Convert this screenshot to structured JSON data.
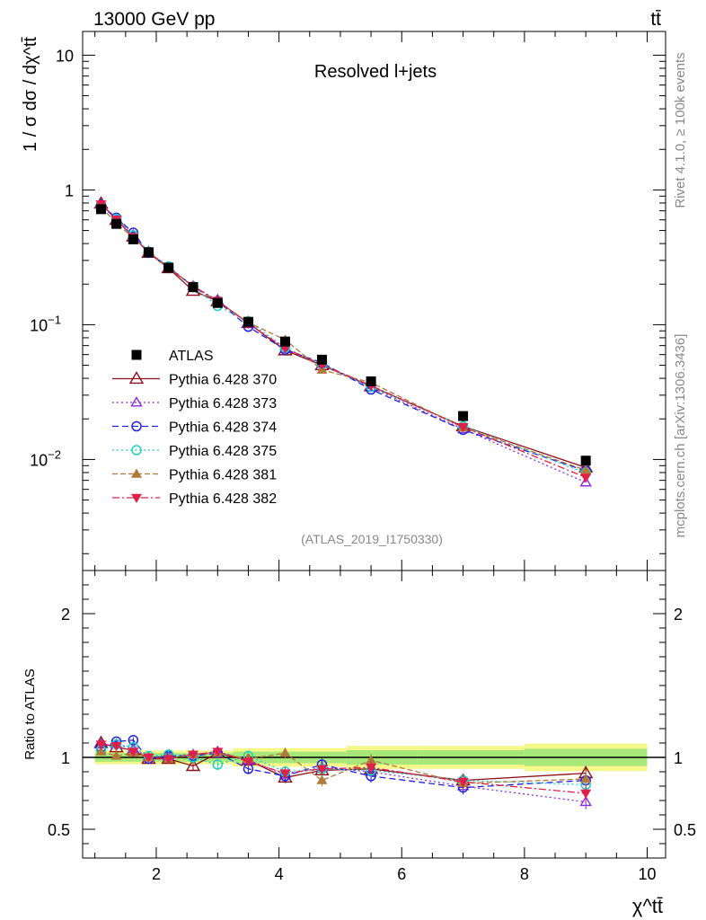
{
  "header": {
    "left_label": "13000 GeV pp",
    "right_label": "tt̄",
    "legend_title": "Resolved l+jets",
    "watermark": "(ATLAS_2019_I1750330)"
  },
  "side": {
    "rivet": "Rivet 4.1.0, ≥ 100k events",
    "mcplots": "mcplots.cern.ch [arXiv:1306.3436]"
  },
  "chart_data": {
    "type": "line",
    "title": "Resolved l+jets",
    "xlabel": "χ^tt̄",
    "ylabel": "1 / σ dσ / dχ^tt̄",
    "ratio_ylabel": "Ratio to ATLAS",
    "xlim": [
      0.8,
      10.3
    ],
    "ylim": [
      0.0015,
      15
    ],
    "ratio_ylim": [
      0.3,
      2.3
    ],
    "yscale": "log",
    "x": [
      1.1,
      1.35,
      1.625,
      1.875,
      2.2,
      2.6,
      3.0,
      3.5,
      4.1,
      4.7,
      5.5,
      7.0,
      9.0
    ],
    "x_ticks": [
      "2",
      "4",
      "6",
      "8",
      "10"
    ],
    "y_ticks": [
      "10^-2",
      "10^-1",
      "1",
      "10"
    ],
    "ratio_ticks": [
      "0.5",
      "1",
      "2"
    ],
    "data": {
      "name": "ATLAS",
      "values": [
        0.72,
        0.56,
        0.43,
        0.345,
        0.265,
        0.19,
        0.145,
        0.105,
        0.075,
        0.055,
        0.038,
        0.021,
        0.0098
      ],
      "band": [
        0.03,
        0.03,
        0.03,
        0.03,
        0.03,
        0.03,
        0.03,
        0.04,
        0.04,
        0.04,
        0.05,
        0.05,
        0.06
      ]
    },
    "series": [
      {
        "name": "Pythia 6.428 370",
        "color": "#8b0f1a",
        "marker": "triangle-open",
        "dash": "",
        "ratio": [
          1.1,
          1.07,
          1.05,
          0.99,
          0.99,
          0.94,
          1.03,
          0.98,
          0.86,
          0.91,
          0.92,
          0.84,
          0.89
        ]
      },
      {
        "name": "Pythia 6.428 373",
        "color": "#8a2be2",
        "marker": "triangle-open-small",
        "dash": "2,3",
        "ratio": [
          1.09,
          1.09,
          1.06,
          1.0,
          1.01,
          1.02,
          1.04,
          0.98,
          0.88,
          0.93,
          0.9,
          0.8,
          0.69
        ]
      },
      {
        "name": "Pythia 6.428 374",
        "color": "#2020dd",
        "marker": "circle-open",
        "dash": "7,4",
        "ratio": [
          1.07,
          1.11,
          1.12,
          0.99,
          1.01,
          1.01,
          1.03,
          0.92,
          0.87,
          0.95,
          0.87,
          0.79,
          0.84
        ]
      },
      {
        "name": "Pythia 6.428 375",
        "color": "#20d0c0",
        "marker": "circle-open",
        "dash": "2,3",
        "ratio": [
          1.05,
          1.09,
          1.07,
          1.01,
          1.02,
          1.0,
          0.95,
          1.01,
          0.9,
          0.92,
          0.91,
          0.84,
          0.81
        ]
      },
      {
        "name": "Pythia 6.428 381",
        "color": "#b07a3c",
        "marker": "triangle-up-filled",
        "dash": "6,3",
        "ratio": [
          1.04,
          1.01,
          1.03,
          1.0,
          0.99,
          1.02,
          1.03,
          0.99,
          1.03,
          0.84,
          0.98,
          0.82,
          0.85
        ]
      },
      {
        "name": "Pythia 6.428 382",
        "color": "#e0204a",
        "marker": "triangle-down-filled",
        "dash": "8,3,2,3",
        "ratio": [
          1.09,
          1.08,
          1.04,
          1.0,
          0.99,
          1.02,
          1.04,
          0.97,
          0.89,
          0.92,
          0.93,
          0.83,
          0.75
        ]
      }
    ]
  }
}
